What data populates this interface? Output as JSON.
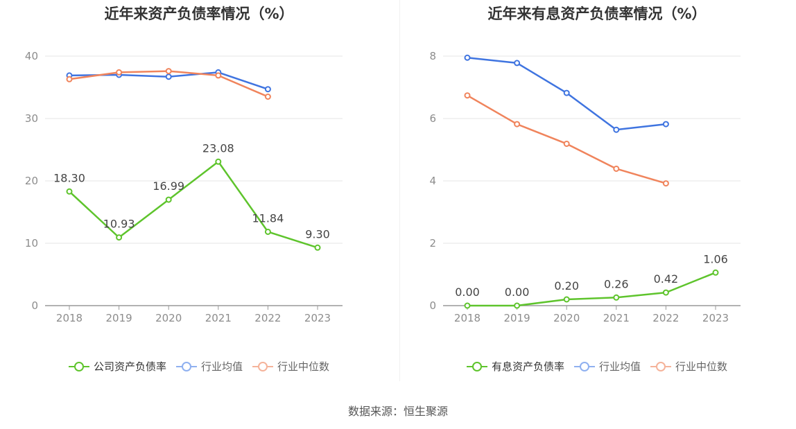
{
  "source_note": "数据来源：恒生聚源",
  "colors": {
    "company": "#5ec42c",
    "avg": "#3f74e0",
    "median": "#f0845c"
  },
  "chart_data": [
    {
      "type": "line",
      "title": "近年来资产负债率情况（%）",
      "categories": [
        "2018",
        "2019",
        "2020",
        "2021",
        "2022",
        "2023"
      ],
      "ylim": [
        0,
        40
      ],
      "yticks": [
        0,
        10,
        20,
        30,
        40
      ],
      "ytick_labels": [
        "0",
        "10",
        "20",
        "30",
        "40"
      ],
      "grid": true,
      "legend_position": "bottom",
      "series": [
        {
          "name": "公司资产负债率",
          "role": "company",
          "values": [
            18.3,
            10.93,
            16.99,
            23.08,
            11.84,
            9.3
          ],
          "labels": [
            "18.30",
            "10.93",
            "16.99",
            "23.08",
            "11.84",
            "9.30"
          ]
        },
        {
          "name": "行业均值",
          "role": "avg",
          "values": [
            36.9,
            37.0,
            36.7,
            37.4,
            34.7,
            null
          ]
        },
        {
          "name": "行业中位数",
          "role": "median",
          "values": [
            36.3,
            37.4,
            37.6,
            36.9,
            33.5,
            null
          ]
        }
      ]
    },
    {
      "type": "line",
      "title": "近年来有息资产负债率情况（%）",
      "categories": [
        "2018",
        "2019",
        "2020",
        "2021",
        "2022",
        "2023"
      ],
      "ylim": [
        0,
        8
      ],
      "yticks": [
        0,
        2,
        4,
        6,
        8
      ],
      "ytick_labels": [
        "0",
        "2",
        "4",
        "6",
        "8"
      ],
      "grid": true,
      "legend_position": "bottom",
      "series": [
        {
          "name": "有息资产负债率",
          "role": "company",
          "values": [
            0.0,
            0.0,
            0.2,
            0.26,
            0.42,
            1.06
          ],
          "labels": [
            "0.00",
            "0.00",
            "0.20",
            "0.26",
            "0.42",
            "1.06"
          ]
        },
        {
          "name": "行业均值",
          "role": "avg",
          "values": [
            7.95,
            7.78,
            6.82,
            5.64,
            5.82,
            null
          ]
        },
        {
          "name": "行业中位数",
          "role": "median",
          "values": [
            6.74,
            5.82,
            5.19,
            4.39,
            3.92,
            null
          ]
        }
      ]
    }
  ]
}
